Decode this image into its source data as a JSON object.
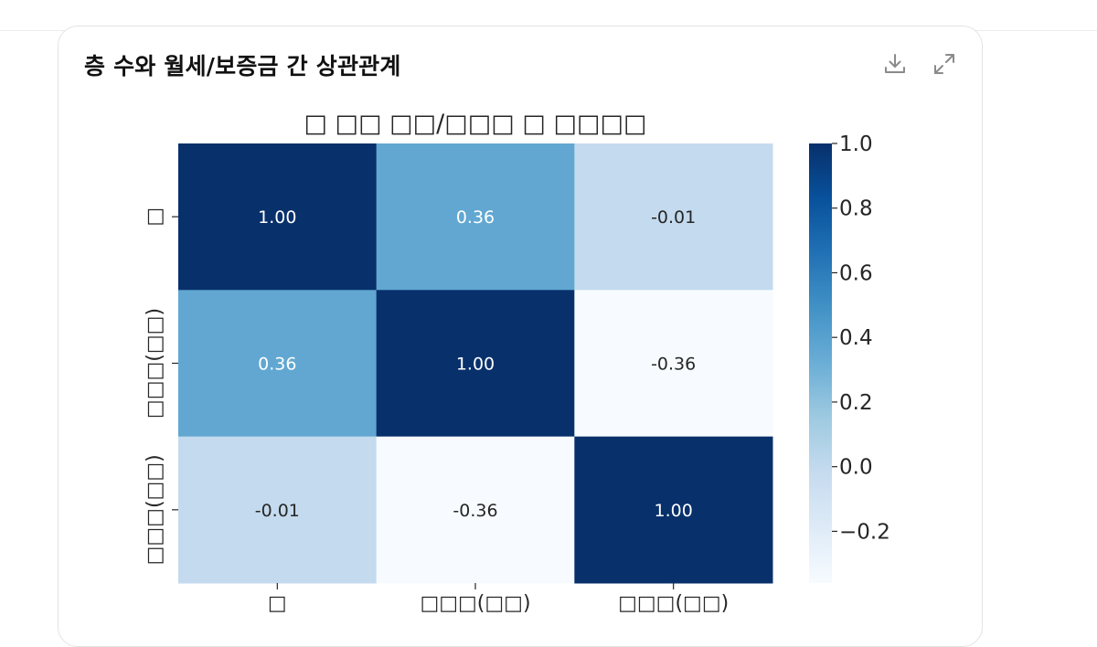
{
  "card": {
    "title": "층 수와 월세/보증금 간 상관관계",
    "download_icon": "download-icon",
    "expand_icon": "expand-icon"
  },
  "chart_data": {
    "type": "heatmap",
    "title": "□ □□ □□/□□□ □ □□□□",
    "x_labels": [
      "□",
      "□□□(□□)",
      "□□□(□□)"
    ],
    "y_labels": [
      "□",
      "□□□(□□)",
      "□□□(□□)"
    ],
    "values": [
      [
        1.0,
        0.36,
        -0.01
      ],
      [
        0.36,
        1.0,
        -0.36
      ],
      [
        -0.01,
        -0.36,
        1.0
      ]
    ],
    "value_labels": [
      [
        "1.00",
        "0.36",
        "-0.01"
      ],
      [
        "0.36",
        "1.00",
        "-0.36"
      ],
      [
        "-0.01",
        "-0.36",
        "1.00"
      ]
    ],
    "colormap": "Blues",
    "colorbar": {
      "vmin": -0.36,
      "vmax": 1.0,
      "ticks": [
        1.0,
        0.8,
        0.6,
        0.4,
        0.2,
        0.0,
        -0.2
      ],
      "tick_labels": [
        "1.0",
        "0.8",
        "0.6",
        "0.4",
        "0.2",
        "0.0",
        "−0.2"
      ]
    },
    "colors": {
      "high": "#08306b",
      "low": "#f7fbff",
      "text_dark": "#262626",
      "text_light": "#ffffff"
    }
  }
}
